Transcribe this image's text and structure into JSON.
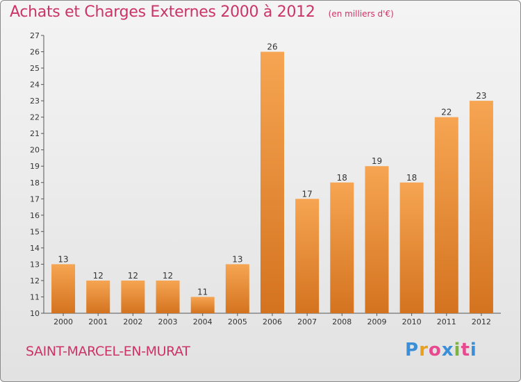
{
  "header": {
    "title": "Achats et Charges Externes 2000 à 2012",
    "subtitle": "(en milliers d'€)"
  },
  "footer": {
    "city": "SAINT-MARCEL-EN-MURAT",
    "logo_text": "Proxiti"
  },
  "colors": {
    "title": "#cc3366",
    "bar_light": "#f6a552",
    "bar_dark": "#d4731f",
    "background": "#eaeaea"
  },
  "chart_data": {
    "type": "bar",
    "title": "Achats et Charges Externes 2000 à 2012",
    "subtitle": "(en milliers d'€)",
    "categories": [
      "2000",
      "2001",
      "2002",
      "2003",
      "2004",
      "2005",
      "2006",
      "2007",
      "2008",
      "2009",
      "2010",
      "2011",
      "2012"
    ],
    "values": [
      13,
      12,
      12,
      12,
      11,
      13,
      26,
      17,
      18,
      19,
      18,
      22,
      23
    ],
    "ylim": [
      10,
      27
    ],
    "yticks": [
      10,
      11,
      12,
      13,
      14,
      15,
      16,
      17,
      18,
      19,
      20,
      21,
      22,
      23,
      24,
      25,
      26,
      27
    ],
    "grid": false,
    "data_labels": true
  }
}
